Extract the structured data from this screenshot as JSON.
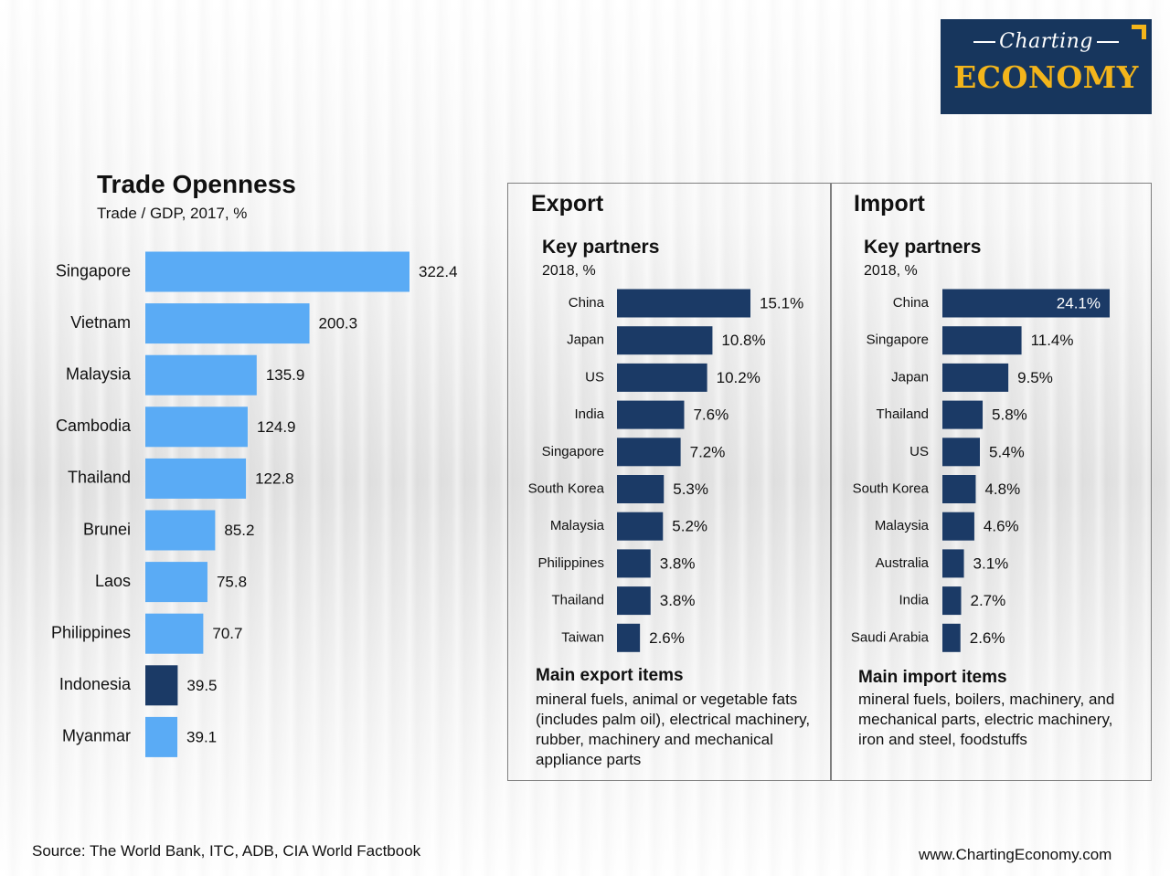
{
  "logo": {
    "line1": "Charting",
    "line2": "ECONOMY"
  },
  "colors": {
    "light_bar": "#5aabf5",
    "dark_bar": "#1b3a66",
    "navy": "#17365d",
    "gold": "#f3b51b"
  },
  "chart_data": [
    {
      "type": "bar",
      "orientation": "horizontal",
      "title": "Trade Openness",
      "subtitle": "Trade / GDP, 2017, %",
      "categories": [
        "Singapore",
        "Vietnam",
        "Malaysia",
        "Cambodia",
        "Thailand",
        "Brunei",
        "Laos",
        "Philippines",
        "Indonesia",
        "Myanmar"
      ],
      "values": [
        322.4,
        200.3,
        135.9,
        124.9,
        122.8,
        85.2,
        75.8,
        70.7,
        39.5,
        39.1
      ],
      "labels": [
        "322.4",
        "200.3",
        "135.9",
        "124.9",
        "122.8",
        "85.2",
        "75.8",
        "70.7",
        "39.5",
        "39.1"
      ],
      "highlight": "Indonesia",
      "xlim": [
        0,
        322.4
      ]
    },
    {
      "type": "bar",
      "orientation": "horizontal",
      "panel": "Export",
      "title": "Key partners",
      "subtitle": "2018, %",
      "categories": [
        "China",
        "Japan",
        "US",
        "India",
        "Singapore",
        "South Korea",
        "Malaysia",
        "Philippines",
        "Thailand",
        "Taiwan"
      ],
      "values": [
        15.1,
        10.8,
        10.2,
        7.6,
        7.2,
        5.3,
        5.2,
        3.8,
        3.8,
        2.6
      ],
      "labels": [
        "15.1%",
        "10.8%",
        "10.2%",
        "7.6%",
        "7.2%",
        "5.3%",
        "5.2%",
        "3.8%",
        "3.8%",
        "2.6%"
      ],
      "xlim": [
        0,
        15.1
      ]
    },
    {
      "type": "bar",
      "orientation": "horizontal",
      "panel": "Import",
      "title": "Key partners",
      "subtitle": "2018, %",
      "categories": [
        "China",
        "Singapore",
        "Japan",
        "Thailand",
        "US",
        "South Korea",
        "Malaysia",
        "Australia",
        "India",
        "Saudi Arabia"
      ],
      "values": [
        24.1,
        11.4,
        9.5,
        5.8,
        5.4,
        4.8,
        4.6,
        3.1,
        2.7,
        2.6
      ],
      "labels": [
        "24.1%",
        "11.4%",
        "9.5%",
        "5.8%",
        "5.4%",
        "4.8%",
        "4.6%",
        "3.1%",
        "2.7%",
        "2.6%"
      ],
      "xlim": [
        0,
        24.1
      ]
    }
  ],
  "export": {
    "heading": "Export",
    "key_partners": "Key partners",
    "year": "2018, %",
    "main_items_title": "Main export items",
    "main_items_text": "mineral fuels, animal or vegetable fats (includes palm oil), electrical machinery, rubber, machinery and mechanical appliance parts"
  },
  "import": {
    "heading": "Import",
    "key_partners": "Key partners",
    "year": "2018, %",
    "main_items_title": "Main import items",
    "main_items_text": "mineral fuels, boilers, machinery, and mechanical parts, electric machinery, iron and steel, foodstuffs"
  },
  "footer": {
    "source": "Source: The World Bank, ITC, ADB, CIA World Factbook",
    "website": "www.ChartingEconomy.com"
  }
}
